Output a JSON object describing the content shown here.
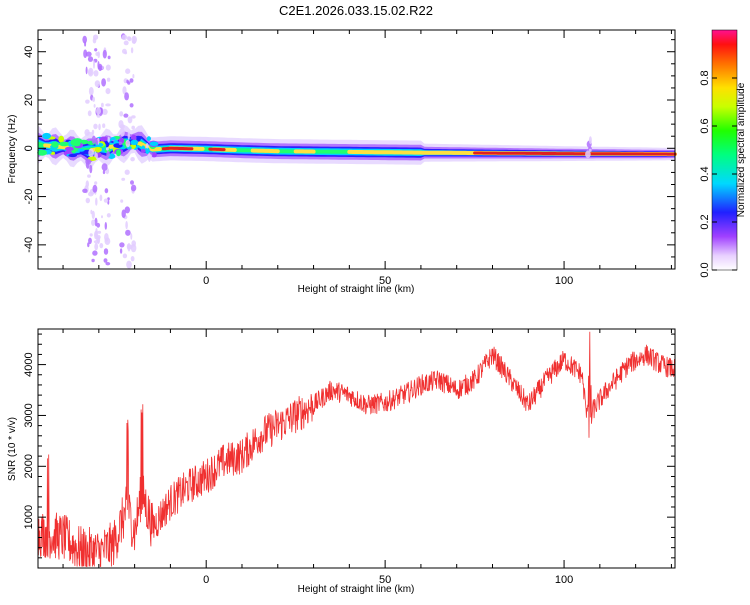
{
  "title": "C2E1.2026.033.15.02.R22",
  "colors": {
    "snr_line": "#f03030",
    "spectrum_ridge": "#e02020",
    "frame": "#000000"
  },
  "chart_data": [
    {
      "type": "heatmap",
      "xlabel": "Height of straight line (km)",
      "ylabel": "Frequency (Hz)",
      "xlim": [
        -47,
        131
      ],
      "ylim": [
        -50,
        49
      ],
      "xticks": [
        0,
        50,
        100
      ],
      "yticks": [
        -40,
        -20,
        0,
        20,
        40
      ],
      "colorbar": {
        "label": "Normalized spectral amplitude",
        "range": [
          0,
          1
        ],
        "ticks": [
          "0.0",
          "0.2",
          "0.4",
          "0.6",
          "0.8"
        ]
      },
      "ridge": {
        "description_values_hz": [
          [
            -47,
            1.5
          ],
          [
            -40,
            0.5
          ],
          [
            -33,
            -1
          ],
          [
            -25,
            1
          ],
          [
            -20,
            3
          ],
          [
            -15,
            -0.5
          ],
          [
            -10,
            0
          ],
          [
            0,
            -0.3
          ],
          [
            10,
            -0.8
          ],
          [
            20,
            -1.2
          ],
          [
            40,
            -1.5
          ],
          [
            60,
            -1.8
          ],
          [
            80,
            -2
          ],
          [
            100,
            -2.2
          ],
          [
            131,
            -2.4
          ]
        ]
      },
      "vertical_streaks_x": [
        -32,
        -29,
        -22,
        -16,
        107
      ]
    },
    {
      "type": "line",
      "xlabel": "Height of straight line (km)",
      "ylabel": "SNR (10 * v/v)",
      "xlim": [
        -47,
        131
      ],
      "ylim": [
        0,
        4700
      ],
      "xticks": [
        0,
        50,
        100
      ],
      "yticks": [
        1000,
        2000,
        3000,
        4000
      ],
      "series": [
        {
          "trend": [
            [
              -47,
              700
            ],
            [
              -40,
              600
            ],
            [
              -35,
              350
            ],
            [
              -30,
              300
            ],
            [
              -26,
              450
            ],
            [
              -22,
              1200
            ],
            [
              -20,
              700
            ],
            [
              -18,
              1500
            ],
            [
              -15,
              800
            ],
            [
              -10,
              1300
            ],
            [
              -5,
              1600
            ],
            [
              0,
              1800
            ],
            [
              5,
              2100
            ],
            [
              10,
              2200
            ],
            [
              15,
              2600
            ],
            [
              20,
              2800
            ],
            [
              25,
              3000
            ],
            [
              30,
              3200
            ],
            [
              35,
              3500
            ],
            [
              40,
              3400
            ],
            [
              45,
              3200
            ],
            [
              50,
              3250
            ],
            [
              55,
              3400
            ],
            [
              60,
              3600
            ],
            [
              65,
              3700
            ],
            [
              70,
              3500
            ],
            [
              75,
              3700
            ],
            [
              80,
              4200
            ],
            [
              85,
              3700
            ],
            [
              90,
              3200
            ],
            [
              95,
              3700
            ],
            [
              100,
              4100
            ],
            [
              105,
              3800
            ],
            [
              107,
              2600
            ],
            [
              108,
              3100
            ],
            [
              112,
              3500
            ],
            [
              118,
              4000
            ],
            [
              123,
              4200
            ],
            [
              127,
              4000
            ],
            [
              131,
              3900
            ]
          ]
        }
      ]
    }
  ]
}
